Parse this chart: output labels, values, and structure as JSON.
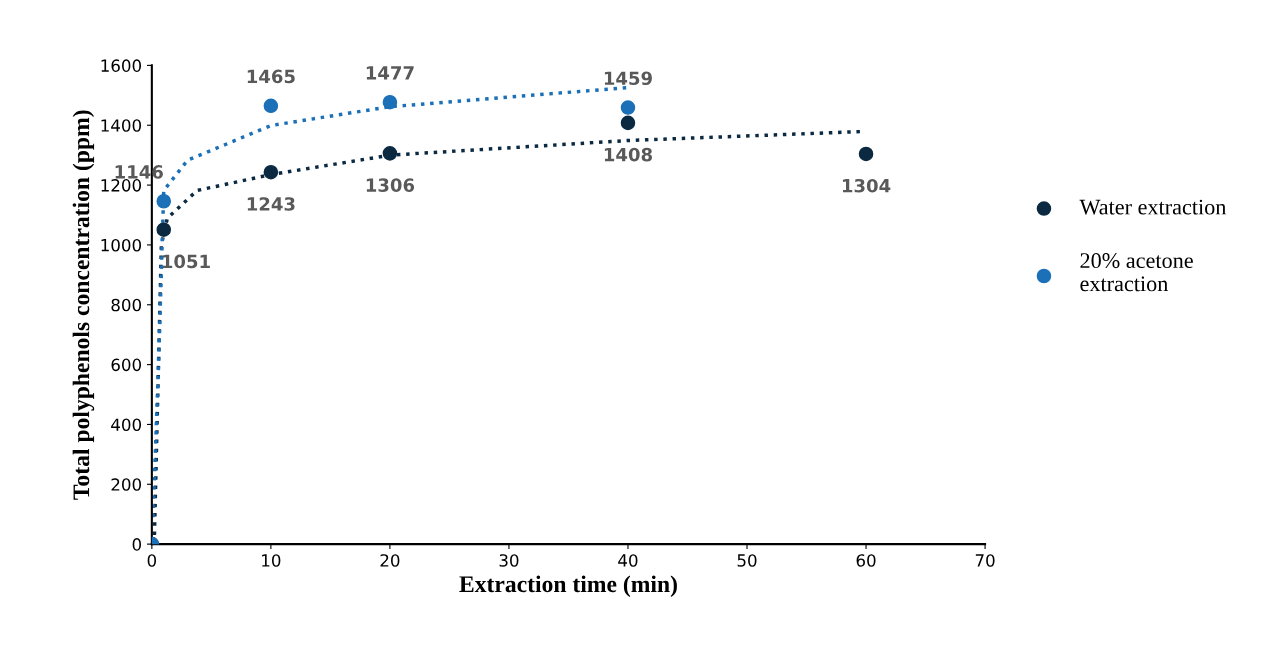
{
  "chart_data": {
    "type": "scatter",
    "xlabel": "Extraction time (min)",
    "ylabel": "Total polyphenols concentration (ppm)",
    "xlim": [
      0,
      70
    ],
    "xticks": [
      0,
      10,
      20,
      30,
      40,
      50,
      60,
      70
    ],
    "ylim": [
      0,
      1600
    ],
    "yticks": [
      0,
      200,
      400,
      600,
      800,
      1000,
      1200,
      1400,
      1600
    ],
    "grid": false,
    "legend": "right",
    "marker": "circle",
    "series": [
      {
        "name": "Water extraction",
        "color": "#0b2a42",
        "x": [
          0,
          1,
          10,
          20,
          40,
          60
        ],
        "values": [
          0,
          1051,
          1243,
          1306,
          1408,
          1304
        ],
        "value_labels": [
          null,
          "1051",
          "1243",
          "1306",
          "1408",
          "1304"
        ]
      },
      {
        "name": "20% acetone extraction",
        "color": "#1b70b8",
        "x": [
          0,
          1,
          10,
          20,
          40
        ],
        "values": [
          0,
          1146,
          1465,
          1477,
          1459
        ],
        "value_labels": [
          null,
          "1146",
          "1465",
          "1477",
          "1459"
        ]
      },
      {
        "type": "line",
        "line_style": "dotted",
        "marker": "none",
        "color": "#0b2a42",
        "x": [
          0.2,
          0.8,
          1.3,
          3.8,
          10,
          20,
          40,
          59.7
        ],
        "values": [
          0,
          1000,
          1089,
          1182,
          1235,
          1300,
          1349,
          1379
        ]
      },
      {
        "type": "line",
        "line_style": "dotted",
        "marker": "none",
        "color": "#1b70b8",
        "x": [
          0.1,
          0.6,
          0.85,
          1,
          3,
          10,
          20,
          40
        ],
        "values": [
          90,
          648,
          982,
          1182,
          1283,
          1399,
          1462,
          1526
        ]
      }
    ]
  }
}
